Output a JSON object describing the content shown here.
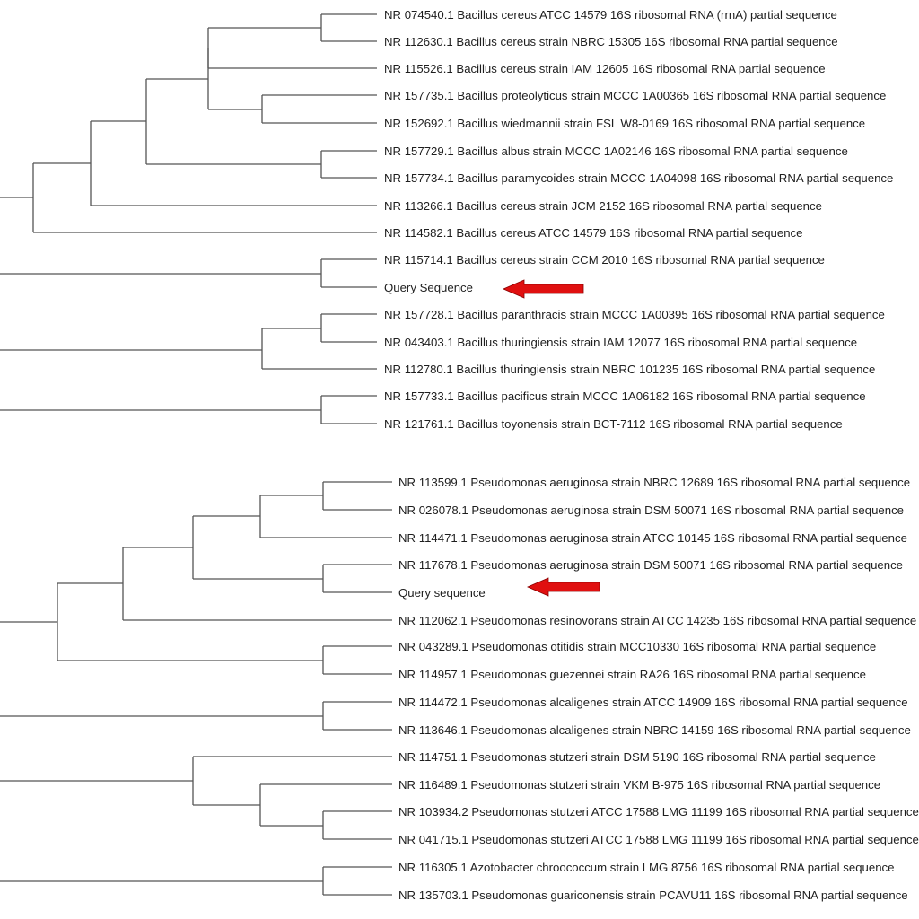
{
  "colors": {
    "branch": "#555555",
    "label": "#1e1e1e",
    "arrow": "#e01010",
    "arrow_outline": "#8a0000"
  },
  "trees": [
    {
      "name": "bacillus-tree",
      "leaves": [
        "NR 074540.1 Bacillus cereus ATCC 14579 16S ribosomal RNA (rrnA) partial sequence",
        "NR 112630.1 Bacillus cereus strain NBRC 15305 16S ribosomal RNA partial sequence",
        "NR 115526.1 Bacillus cereus strain IAM 12605 16S ribosomal RNA partial sequence",
        "NR 157735.1 Bacillus proteolyticus strain MCCC 1A00365 16S ribosomal RNA partial sequence",
        "NR 152692.1 Bacillus wiedmannii strain FSL W8-0169 16S ribosomal RNA partial sequence",
        "NR 157729.1 Bacillus albus strain MCCC 1A02146 16S ribosomal RNA partial sequence",
        "NR 157734.1 Bacillus paramycoides strain MCCC 1A04098 16S ribosomal RNA partial sequence",
        "NR 113266.1 Bacillus cereus strain JCM 2152 16S ribosomal RNA partial sequence",
        "NR 114582.1 Bacillus cereus ATCC 14579 16S ribosomal RNA partial sequence",
        "NR 115714.1 Bacillus cereus strain CCM 2010 16S ribosomal RNA partial sequence",
        "Query Sequence",
        "NR 157728.1 Bacillus paranthracis strain MCCC 1A00395 16S ribosomal RNA partial sequence",
        "NR 043403.1 Bacillus thuringiensis strain IAM 12077 16S ribosomal RNA partial sequence",
        "NR 112780.1 Bacillus thuringiensis strain NBRC 101235 16S ribosomal RNA partial sequence",
        "NR 157733.1 Bacillus pacificus strain MCCC 1A06182 16S ribosomal RNA partial sequence",
        "NR 121761.1 Bacillus toyonensis strain BCT-7112 16S ribosomal RNA partial sequence"
      ]
    },
    {
      "name": "pseudomonas-tree",
      "leaves": [
        "NR 113599.1 Pseudomonas aeruginosa strain NBRC 12689 16S ribosomal RNA partial sequence",
        "NR 026078.1 Pseudomonas aeruginosa strain DSM 50071 16S ribosomal RNA partial sequence",
        "NR 114471.1 Pseudomonas aeruginosa strain ATCC 10145 16S ribosomal RNA partial sequence",
        "NR 117678.1 Pseudomonas aeruginosa strain DSM 50071 16S ribosomal RNA partial sequence",
        "Query sequence",
        "NR 112062.1 Pseudomonas resinovorans strain ATCC 14235 16S ribosomal RNA partial sequence",
        "NR 043289.1 Pseudomonas otitidis strain MCC10330 16S ribosomal RNA partial sequence",
        "NR 114957.1 Pseudomonas guezennei strain RA26 16S ribosomal RNA partial sequence",
        "NR 114472.1 Pseudomonas alcaligenes strain ATCC 14909 16S ribosomal RNA partial sequence",
        "NR 113646.1 Pseudomonas alcaligenes strain NBRC 14159 16S ribosomal RNA partial sequence",
        "NR 114751.1 Pseudomonas stutzeri strain DSM 5190 16S ribosomal RNA partial sequence",
        "NR 116489.1 Pseudomonas stutzeri strain VKM B-975 16S ribosomal RNA partial sequence",
        "NR 103934.2 Pseudomonas stutzeri ATCC 17588 LMG 11199 16S ribosomal RNA partial sequence",
        "NR 041715.1 Pseudomonas stutzeri ATCC 17588 LMG 11199 16S ribosomal RNA partial sequence",
        "NR 116305.1 Azotobacter chroococcum strain LMG 8756 16S ribosomal RNA partial sequence",
        "NR 135703.1 Pseudomonas guariconensis strain PCAVU11 16S ribosomal RNA partial sequence"
      ]
    }
  ]
}
